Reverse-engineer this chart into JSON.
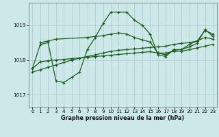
{
  "background_color": "#cce8e8",
  "grid_color": "#aacccc",
  "line_color": "#1a5c1a",
  "xlabel": "Graphe pression niveau de la mer (hPa)",
  "xlim": [
    -0.5,
    23.5
  ],
  "ylim": [
    1016.65,
    1019.65
  ],
  "yticks": [
    1017,
    1018,
    1019
  ],
  "xticks": [
    0,
    1,
    2,
    3,
    4,
    5,
    6,
    7,
    8,
    9,
    10,
    11,
    12,
    13,
    14,
    15,
    16,
    17,
    18,
    19,
    20,
    21,
    22,
    23
  ],
  "series1_x": [
    0,
    1,
    2,
    3,
    4,
    5,
    6,
    7,
    8,
    9,
    10,
    11,
    12,
    13,
    14,
    15,
    16,
    17,
    18,
    19,
    20,
    21,
    22,
    23
  ],
  "series1_y": [
    1017.75,
    1018.45,
    1018.5,
    1017.4,
    1017.35,
    1017.5,
    1017.65,
    1018.3,
    1018.65,
    1019.05,
    1019.38,
    1019.38,
    1019.38,
    1019.15,
    1019.0,
    1018.75,
    1018.15,
    1018.1,
    1018.3,
    1018.3,
    1018.45,
    1018.55,
    1018.85,
    1018.75
  ],
  "series2_x": [
    0,
    1,
    2,
    3,
    4,
    5,
    6,
    7,
    8,
    9,
    10,
    11,
    12,
    13,
    14,
    15,
    16,
    17,
    18,
    19,
    20,
    21,
    22,
    23
  ],
  "series2_y": [
    1017.75,
    1017.95,
    1017.98,
    1018.0,
    1018.02,
    1018.04,
    1018.06,
    1018.08,
    1018.1,
    1018.12,
    1018.14,
    1018.16,
    1018.18,
    1018.2,
    1018.22,
    1018.24,
    1018.2,
    1018.2,
    1018.25,
    1018.25,
    1018.3,
    1018.35,
    1018.4,
    1018.45
  ],
  "series3_x": [
    0,
    1,
    2,
    3,
    4,
    5,
    6,
    7,
    8,
    9,
    10,
    11,
    12,
    13,
    14,
    15,
    16,
    17,
    18,
    19,
    20,
    21,
    22,
    23
  ],
  "series3_y": [
    1017.65,
    1017.72,
    1017.79,
    1017.86,
    1017.93,
    1018.0,
    1018.05,
    1018.1,
    1018.15,
    1018.2,
    1018.25,
    1018.28,
    1018.3,
    1018.32,
    1018.34,
    1018.36,
    1018.38,
    1018.4,
    1018.45,
    1018.48,
    1018.5,
    1018.55,
    1018.65,
    1018.6
  ],
  "series4_x": [
    1,
    2,
    3,
    7,
    8,
    9,
    10,
    11,
    12,
    13,
    14,
    15,
    16,
    17,
    18,
    19,
    20,
    21,
    22,
    23
  ],
  "series4_y": [
    1018.5,
    1018.55,
    1018.6,
    1018.65,
    1018.68,
    1018.7,
    1018.75,
    1018.78,
    1018.75,
    1018.65,
    1018.58,
    1018.52,
    1018.2,
    1018.15,
    1018.28,
    1018.3,
    1018.38,
    1018.48,
    1018.88,
    1018.68
  ]
}
